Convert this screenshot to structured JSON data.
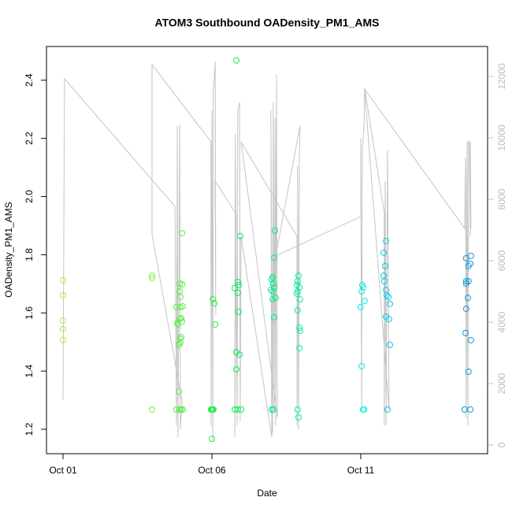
{
  "chart_data": {
    "type": "scatter",
    "title": "ATOM3 Southbound OADensity_PM1_AMS",
    "x_label": "Date",
    "y_label": "OADensity_PM1_AMS",
    "xlim": [
      -0.556,
      14.26
    ],
    "xticks": [
      {
        "value": 0,
        "label": "Oct 01"
      },
      {
        "value": 5,
        "label": "Oct 06"
      },
      {
        "value": 10,
        "label": "Oct 11"
      }
    ],
    "ylim": [
      1.116,
      2.516
    ],
    "yticks": [
      1.2,
      1.4,
      1.6,
      1.8,
      {
        "value": 2,
        "label": "2.0"
      },
      2.2,
      2.4
    ],
    "y2lim": [
      -282,
      12974
    ],
    "y2ticks": [
      0,
      2000,
      4000,
      6000,
      8000,
      10000,
      12000
    ],
    "series": [
      {
        "color": "#a6ee44",
        "x": [
          0,
          0,
          0,
          0,
          0
        ],
        "values": [
          1.712,
          1.661,
          1.574,
          1.545,
          1.507
        ]
      },
      {
        "color": "#7fee44",
        "x": [
          2.99,
          2.99,
          2.99
        ],
        "values": [
          1.728,
          1.72,
          1.268
        ]
      },
      {
        "color": "#55ee44",
        "x": [
          3.81,
          3.84,
          3.86,
          3.89,
          3.89,
          3.81,
          3.92,
          3.92,
          3.94,
          3.94,
          3.97,
          3.92,
          3.97,
          3.94,
          4.0,
          4.0,
          4.02,
          3.92,
          3.97,
          4.02,
          3.94,
          4.0
        ],
        "values": [
          1.62,
          1.566,
          1.56,
          1.49,
          1.33,
          1.268,
          1.701,
          1.674,
          1.655,
          1.62,
          1.582,
          1.579,
          1.517,
          1.498,
          1.874,
          1.698,
          1.623,
          1.268,
          1.268,
          1.268,
          1.511,
          1.571
        ]
      },
      {
        "color": "#22ee44",
        "x": [
          5.03,
          5.08,
          5.11,
          5.03,
          5.05,
          5.0,
          5.0,
          4.97
        ],
        "values": [
          1.647,
          1.633,
          1.56,
          1.268,
          1.268,
          1.268,
          1.167,
          1.268
        ]
      },
      {
        "color": "#00ee55",
        "x": [
          5.82,
          5.77,
          5.87,
          5.9,
          5.95,
          5.87,
          5.9,
          5.82,
          5.93,
          5.82,
          5.77,
          5.87,
          5.98
        ],
        "values": [
          2.468,
          1.685,
          1.706,
          1.696,
          1.864,
          1.669,
          1.604,
          1.465,
          1.457,
          1.406,
          1.268,
          1.268,
          1.268
        ]
      },
      {
        "color": "#00ee88",
        "x": [
          7.12,
          7.09,
          7.01,
          7.04,
          7.06,
          7.09,
          7.04,
          6.98,
          7.14,
          7.04,
          7.09,
          7.01,
          7.06
        ],
        "values": [
          1.883,
          1.79,
          1.715,
          1.723,
          1.701,
          1.688,
          1.674,
          1.679,
          1.652,
          1.647,
          1.585,
          1.268,
          1.268
        ]
      },
      {
        "color": "#00eeaa",
        "x": [
          7.91,
          7.88,
          7.86,
          7.94,
          7.88,
          7.86,
          7.96,
          7.88,
          7.94,
          7.96,
          7.94,
          7.88,
          7.91
        ],
        "values": [
          1.728,
          1.709,
          1.696,
          1.688,
          1.674,
          1.666,
          1.647,
          1.609,
          1.549,
          1.539,
          1.479,
          1.268,
          1.241
        ]
      },
      {
        "color": "#00eedd",
        "x": [
          10.05,
          10.08,
          10.0,
          10.13,
          10.03,
          10.11,
          10.08,
          10.03
        ],
        "values": [
          1.696,
          1.688,
          1.62,
          1.641,
          1.417,
          1.268,
          1.268,
          1.674
        ]
      },
      {
        "color": "#00ccee",
        "x": [
          10.85,
          10.77,
          10.82,
          10.77,
          10.79,
          10.85,
          10.87,
          10.93,
          10.98,
          10.85,
          10.95,
          10.98,
          10.9
        ],
        "values": [
          1.847,
          1.807,
          1.761,
          1.728,
          1.709,
          1.679,
          1.66,
          1.655,
          1.631,
          1.587,
          1.579,
          1.49,
          1.268
        ]
      },
      {
        "color": "#1199dd",
        "x": [
          13.7,
          13.54,
          13.62,
          13.68,
          13.54,
          13.62,
          13.54,
          13.6,
          13.54,
          13.52,
          13.7,
          13.62,
          13.49,
          13.68
        ],
        "values": [
          1.796,
          1.788,
          1.761,
          1.769,
          1.709,
          1.709,
          1.701,
          1.652,
          1.614,
          1.531,
          1.506,
          1.398,
          1.268,
          1.268
        ]
      },
      {
        "type": "line",
        "axis": "y2",
        "color": "#c4c4c4",
        "x": [
          0,
          0.05,
          3.76,
          3.81,
          3.84,
          3.86,
          3.92,
          3.94,
          4.0,
          2.99,
          2.99,
          4.97,
          4.97,
          5.0,
          5.03,
          5.05,
          5.08,
          5.11,
          5.13,
          5.11,
          5.82,
          5.77,
          5.79,
          5.85,
          5.87,
          5.93,
          5.95,
          5.98,
          7.01,
          6.98,
          7.04,
          7.06,
          7.09,
          7.12,
          7.14,
          7.17,
          7.2,
          5.98,
          7.86,
          7.86,
          7.88,
          7.91,
          7.94,
          7.96,
          7.14,
          10.0,
          10.0,
          10.03,
          10.05,
          10.11,
          10.13,
          10.79,
          10.79,
          10.82,
          10.85,
          10.9,
          10.95,
          10.13,
          13.49,
          13.52,
          13.54,
          13.57,
          13.6,
          13.62,
          13.65,
          13.68,
          13.68,
          13.7
        ],
        "values": [
          1462,
          11923,
          7769,
          641,
          10385,
          256,
          10436,
          513,
          1410,
          6846,
          12385,
          9872,
          641,
          10897,
          128,
          11538,
          11923,
          12487,
          4231,
          8590,
          7513,
          256,
          10128,
          641,
          10897,
          11154,
          769,
          6795,
          256,
          10897,
          385,
          11154,
          1154,
          10641,
          641,
          12051,
          897,
          9872,
          6795,
          641,
          9103,
          513,
          9359,
          10385,
          6154,
          7436,
          10000,
          1154,
          9615,
          10385,
          11615,
          7564,
          641,
          8590,
          641,
          9615,
          1154,
          11590,
          7051,
          9359,
          897,
          9872,
          641,
          9923,
          9744,
          6795,
          9872,
          7051
        ]
      }
    ]
  }
}
